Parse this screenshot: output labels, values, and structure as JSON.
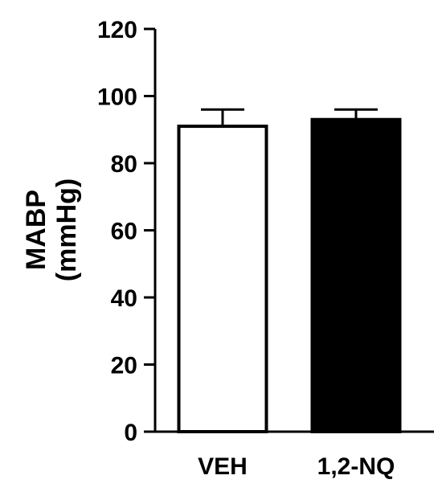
{
  "chart_data": {
    "type": "bar",
    "categories": [
      "VEH",
      "1,2-NQ"
    ],
    "values": [
      91,
      93
    ],
    "errors": [
      5,
      3
    ],
    "bar_fills": [
      "#ffffff",
      "#000000"
    ],
    "bar_stroke": "#000000",
    "ylabel_line1": "MABP",
    "ylabel_line2": "(mmHg)",
    "ylim": [
      0,
      120
    ],
    "yticks": [
      "0",
      "20",
      "40",
      "60",
      "80",
      "100",
      "120"
    ],
    "grid": false,
    "legend": "none"
  }
}
